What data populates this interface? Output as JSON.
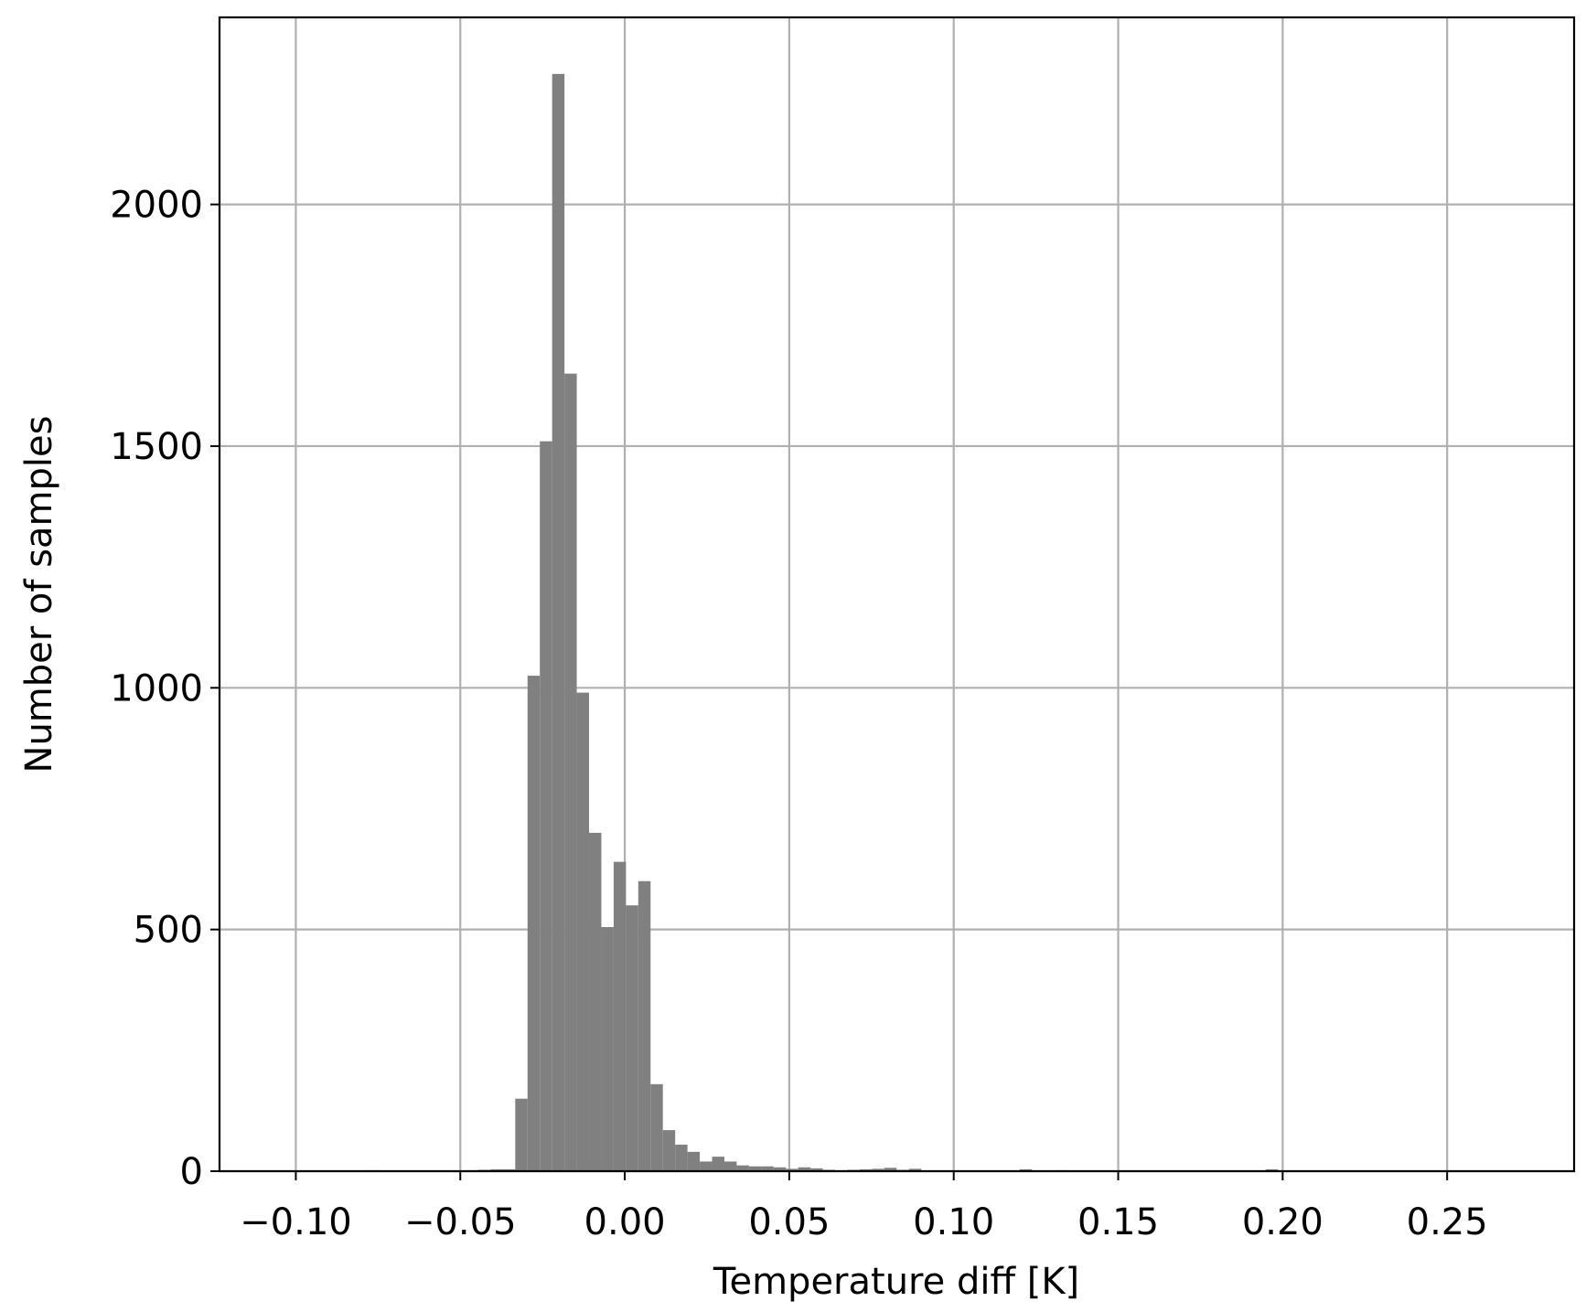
{
  "chart_data": {
    "type": "histogram",
    "xlabel": "Temperature diff [K]",
    "ylabel": "Number of samples",
    "color": "#808080",
    "grid": true,
    "bins": [
      -0.07818,
      -0.07444,
      -0.0707,
      -0.06696,
      -0.06322,
      -0.05948,
      -0.05574,
      -0.052,
      -0.04826,
      -0.04452,
      -0.04078,
      -0.03704,
      -0.0333,
      -0.02956,
      -0.02582,
      -0.02208,
      -0.01834,
      -0.0146,
      -0.01086,
      -0.00712,
      -0.00338,
      0.00036,
      0.0041,
      0.00784,
      0.01158,
      0.01532,
      0.01906,
      0.0228,
      0.02654,
      0.03028,
      0.03402,
      0.03776,
      0.0415,
      0.04524,
      0.04898,
      0.05272,
      0.05646,
      0.0602,
      0.06394,
      0.06768,
      0.07142,
      0.07516,
      0.0789,
      0.08264,
      0.08638,
      0.09012,
      0.09386,
      0.0976,
      0.10134,
      0.10508,
      0.10882,
      0.11256,
      0.1163,
      0.12004,
      0.12378,
      0.12752,
      0.13126,
      0.135,
      0.13874,
      0.14248,
      0.14622,
      0.14996,
      0.1537,
      0.15744,
      0.16118,
      0.16492,
      0.16866,
      0.1724,
      0.17614,
      0.17988,
      0.18362,
      0.18736,
      0.1911,
      0.19484,
      0.19858
    ],
    "values": [
      2,
      0,
      0,
      0,
      0,
      1,
      1,
      1,
      2,
      3,
      4,
      4,
      150,
      1025,
      1510,
      2270,
      1650,
      990,
      700,
      505,
      640,
      550,
      600,
      180,
      85,
      55,
      40,
      20,
      30,
      20,
      12,
      10,
      10,
      8,
      5,
      8,
      6,
      3,
      2,
      3,
      4,
      5,
      7,
      3,
      5,
      1,
      0,
      0,
      0,
      0,
      0,
      0,
      0,
      4,
      0,
      0,
      2,
      0,
      0,
      0,
      0,
      0,
      0,
      0,
      0,
      0,
      0,
      0,
      0,
      0,
      0,
      0,
      0,
      4
    ],
    "xlim": [
      -0.1232,
      0.2886
    ],
    "ylim": [
      0,
      2387
    ],
    "xticks": [
      {
        "value": -0.1,
        "label": "−0.10"
      },
      {
        "value": -0.05,
        "label": "−0.05"
      },
      {
        "value": 0,
        "label": "0.00"
      },
      {
        "value": 0.05,
        "label": "0.05"
      },
      {
        "value": 0.1,
        "label": "0.10"
      },
      {
        "value": 0.15,
        "label": "0.15"
      },
      {
        "value": 0.2,
        "label": "0.20"
      },
      {
        "value": 0.25,
        "label": "0.25"
      }
    ],
    "yticks": [
      0,
      500,
      1000,
      1500,
      2000
    ]
  }
}
